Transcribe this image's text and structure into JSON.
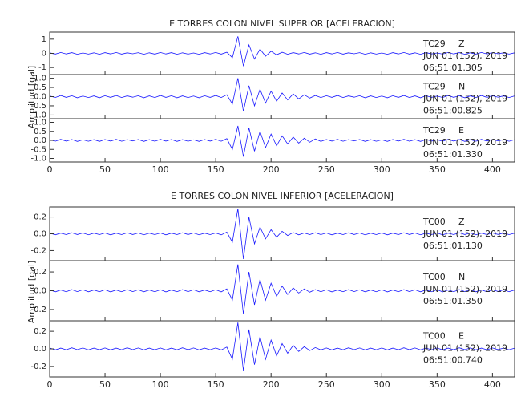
{
  "chart_data": [
    {
      "type": "line",
      "title": "E TORRES COLON NIVEL SUPERIOR [ACELERACION]",
      "ylabel": "Amplitud [gal]",
      "color": "#1a1aff",
      "xlim": [
        0,
        420
      ],
      "xticks": [
        0,
        50,
        100,
        150,
        200,
        250,
        300,
        350,
        400
      ],
      "x": [
        0,
        5,
        10,
        15,
        20,
        25,
        30,
        35,
        40,
        45,
        50,
        55,
        60,
        65,
        70,
        75,
        80,
        85,
        90,
        95,
        100,
        105,
        110,
        115,
        120,
        125,
        130,
        135,
        140,
        145,
        150,
        155,
        160,
        165,
        170,
        175,
        180,
        185,
        190,
        195,
        200,
        205,
        210,
        215,
        220,
        225,
        230,
        235,
        240,
        245,
        250,
        255,
        260,
        265,
        270,
        275,
        280,
        285,
        290,
        295,
        300,
        305,
        310,
        315,
        320,
        325,
        330,
        335,
        340,
        345,
        350,
        355,
        360,
        365,
        370,
        375,
        380,
        385,
        390,
        395,
        400,
        405,
        410,
        415,
        420
      ],
      "panels": [
        {
          "station": "TC29",
          "component": "Z",
          "date": "JUN 01 (152), 2019",
          "time": "06:51:01.305",
          "ylim": [
            -1.5,
            1.5
          ],
          "yticks": [
            -1,
            0,
            1
          ],
          "values": [
            0.04,
            -0.05,
            0.06,
            -0.04,
            0.05,
            -0.06,
            0.03,
            -0.05,
            0.04,
            -0.06,
            0.05,
            -0.04,
            0.06,
            -0.05,
            0.04,
            -0.03,
            0.05,
            -0.06,
            0.04,
            -0.05,
            0.06,
            -0.04,
            0.05,
            -0.06,
            0.04,
            -0.05,
            0.03,
            -0.06,
            0.05,
            -0.04,
            0.06,
            -0.05,
            0.08,
            -0.3,
            1.2,
            -0.9,
            0.6,
            -0.4,
            0.3,
            -0.2,
            0.15,
            -0.1,
            0.08,
            -0.06,
            0.05,
            -0.04,
            0.06,
            -0.05,
            0.04,
            -0.06,
            0.05,
            -0.04,
            0.06,
            -0.05,
            0.04,
            -0.03,
            0.05,
            -0.06,
            0.04,
            -0.05,
            0.03,
            -0.06,
            0.05,
            -0.04,
            0.06,
            -0.05,
            0.04,
            -0.06,
            0.05,
            -0.04,
            0.03,
            -0.05,
            0.06,
            -0.04,
            0.05,
            -0.06,
            0.04,
            -0.05,
            0.06,
            -0.04,
            0.05,
            -0.03,
            0.04,
            -0.05,
            0.04
          ]
        },
        {
          "station": "TC29",
          "component": "N",
          "date": "JUN 01 (152), 2019",
          "time": "06:51:00.825",
          "ylim": [
            -1.2,
            1.2
          ],
          "yticks": [
            {
              "value": -1,
              "label": "-1.0"
            },
            -0.5,
            {
              "value": 0,
              "label": "0.0"
            },
            0.5,
            {
              "value": 1,
              "label": "1.0"
            }
          ],
          "values": [
            0.04,
            -0.05,
            0.06,
            -0.04,
            0.05,
            -0.06,
            0.03,
            -0.05,
            0.04,
            -0.06,
            0.05,
            -0.04,
            0.06,
            -0.05,
            0.04,
            -0.03,
            0.05,
            -0.06,
            0.04,
            -0.05,
            0.06,
            -0.04,
            0.05,
            -0.06,
            0.04,
            -0.05,
            0.03,
            -0.06,
            0.05,
            -0.04,
            0.06,
            -0.05,
            0.1,
            -0.4,
            1.0,
            -0.8,
            0.6,
            -0.5,
            0.4,
            -0.35,
            0.3,
            -0.25,
            0.2,
            -0.18,
            0.15,
            -0.12,
            0.1,
            -0.08,
            0.06,
            -0.05,
            0.05,
            -0.04,
            0.06,
            -0.05,
            0.04,
            -0.03,
            0.05,
            -0.06,
            0.04,
            -0.05,
            0.03,
            -0.06,
            0.05,
            -0.04,
            0.06,
            -0.05,
            0.04,
            -0.06,
            0.05,
            -0.04,
            0.03,
            -0.05,
            0.06,
            -0.04,
            0.05,
            -0.06,
            0.04,
            -0.05,
            0.06,
            -0.04,
            0.05,
            -0.03,
            0.04,
            -0.05,
            0.04
          ]
        },
        {
          "station": "TC29",
          "component": "E",
          "date": "JUN 01 (152), 2019",
          "time": "06:51:01.330",
          "ylim": [
            -1.2,
            1.2
          ],
          "yticks": [
            {
              "value": -1,
              "label": "-1.0"
            },
            -0.5,
            {
              "value": 0,
              "label": "0.0"
            },
            0.5,
            {
              "value": 1,
              "label": "1.0"
            }
          ],
          "values": [
            0.04,
            -0.05,
            0.06,
            -0.04,
            0.05,
            -0.06,
            0.03,
            -0.05,
            0.04,
            -0.06,
            0.05,
            -0.04,
            0.06,
            -0.05,
            0.04,
            -0.03,
            0.05,
            -0.06,
            0.04,
            -0.05,
            0.06,
            -0.04,
            0.05,
            -0.06,
            0.04,
            -0.05,
            0.03,
            -0.06,
            0.05,
            -0.04,
            0.06,
            -0.05,
            0.1,
            -0.5,
            0.8,
            -0.9,
            0.7,
            -0.6,
            0.5,
            -0.4,
            0.35,
            -0.3,
            0.25,
            -0.2,
            0.18,
            -0.15,
            0.12,
            -0.1,
            0.08,
            -0.06,
            0.05,
            -0.04,
            0.06,
            -0.05,
            0.04,
            -0.03,
            0.05,
            -0.06,
            0.04,
            -0.05,
            0.03,
            -0.06,
            0.05,
            -0.04,
            0.06,
            -0.05,
            0.04,
            -0.06,
            0.05,
            -0.04,
            0.03,
            -0.05,
            0.06,
            -0.04,
            0.05,
            -0.06,
            0.04,
            -0.05,
            0.06,
            -0.04,
            0.05,
            -0.03,
            0.04,
            -0.05,
            0.04
          ]
        }
      ]
    },
    {
      "type": "line",
      "title": "E TORRES COLON NIVEL INFERIOR [ACELERACION]",
      "ylabel": "Amplitud [gal]",
      "color": "#1a1aff",
      "xlim": [
        0,
        420
      ],
      "xticks": [
        0,
        50,
        100,
        150,
        200,
        250,
        300,
        350,
        400
      ],
      "x": [
        0,
        5,
        10,
        15,
        20,
        25,
        30,
        35,
        40,
        45,
        50,
        55,
        60,
        65,
        70,
        75,
        80,
        85,
        90,
        95,
        100,
        105,
        110,
        115,
        120,
        125,
        130,
        135,
        140,
        145,
        150,
        155,
        160,
        165,
        170,
        175,
        180,
        185,
        190,
        195,
        200,
        205,
        210,
        215,
        220,
        225,
        230,
        235,
        240,
        245,
        250,
        255,
        260,
        265,
        270,
        275,
        280,
        285,
        290,
        295,
        300,
        305,
        310,
        315,
        320,
        325,
        330,
        335,
        340,
        345,
        350,
        355,
        360,
        365,
        370,
        375,
        380,
        385,
        390,
        395,
        400,
        405,
        410,
        415,
        420
      ],
      "panels": [
        {
          "station": "TC00",
          "component": "Z",
          "date": "JUN 01 (152), 2019",
          "time": "06:51:01.130",
          "ylim": [
            -0.32,
            0.32
          ],
          "yticks": [
            -0.2,
            {
              "value": 0,
              "label": "0.0"
            },
            0.2
          ],
          "values": [
            0.01,
            -0.012,
            0.008,
            -0.01,
            0.012,
            -0.009,
            0.01,
            -0.011,
            0.008,
            -0.01,
            0.01,
            -0.012,
            0.008,
            -0.01,
            0.012,
            -0.009,
            0.01,
            -0.011,
            0.008,
            -0.01,
            0.01,
            -0.012,
            0.008,
            -0.01,
            0.012,
            -0.009,
            0.01,
            -0.011,
            0.008,
            -0.01,
            0.01,
            -0.012,
            0.02,
            -0.1,
            0.3,
            -0.3,
            0.2,
            -0.12,
            0.08,
            -0.06,
            0.05,
            -0.04,
            0.03,
            -0.02,
            0.015,
            -0.012,
            0.01,
            -0.01,
            0.012,
            -0.01,
            0.01,
            -0.012,
            0.008,
            -0.01,
            0.012,
            -0.009,
            0.01,
            -0.011,
            0.008,
            -0.01,
            0.01,
            -0.012,
            0.008,
            -0.01,
            0.012,
            -0.009,
            0.01,
            -0.011,
            0.008,
            -0.01,
            0.01,
            -0.012,
            0.008,
            -0.01,
            0.012,
            -0.009,
            0.01,
            -0.011,
            0.008,
            -0.01,
            0.01,
            -0.008,
            0.009,
            -0.01,
            0.008
          ]
        },
        {
          "station": "TC00",
          "component": "N",
          "date": "JUN 01 (152), 2019",
          "time": "06:51:01.350",
          "ylim": [
            -0.32,
            0.32
          ],
          "yticks": [
            -0.2,
            {
              "value": 0,
              "label": "0.0"
            },
            0.2
          ],
          "values": [
            0.01,
            -0.012,
            0.008,
            -0.01,
            0.012,
            -0.009,
            0.01,
            -0.011,
            0.008,
            -0.01,
            0.01,
            -0.012,
            0.008,
            -0.01,
            0.012,
            -0.009,
            0.01,
            -0.011,
            0.008,
            -0.01,
            0.01,
            -0.012,
            0.008,
            -0.01,
            0.012,
            -0.009,
            0.01,
            -0.011,
            0.008,
            -0.01,
            0.01,
            -0.012,
            0.02,
            -0.1,
            0.28,
            -0.25,
            0.2,
            -0.15,
            0.12,
            -0.1,
            0.08,
            -0.06,
            0.05,
            -0.04,
            0.03,
            -0.025,
            0.02,
            -0.015,
            0.012,
            -0.01,
            0.01,
            -0.012,
            0.008,
            -0.01,
            0.012,
            -0.009,
            0.01,
            -0.011,
            0.008,
            -0.01,
            0.01,
            -0.012,
            0.008,
            -0.01,
            0.012,
            -0.009,
            0.01,
            -0.011,
            0.008,
            -0.01,
            0.01,
            -0.012,
            0.008,
            -0.01,
            0.012,
            -0.009,
            0.01,
            -0.011,
            0.008,
            -0.01,
            0.01,
            -0.008,
            0.009,
            -0.01,
            0.008
          ]
        },
        {
          "station": "TC00",
          "component": "E",
          "date": "JUN 01 (152), 2019",
          "time": "06:51:00.740",
          "ylim": [
            -0.32,
            0.32
          ],
          "yticks": [
            -0.2,
            {
              "value": 0,
              "label": "0.0"
            },
            0.2
          ],
          "values": [
            0.01,
            -0.012,
            0.008,
            -0.01,
            0.012,
            -0.009,
            0.01,
            -0.011,
            0.008,
            -0.01,
            0.01,
            -0.012,
            0.008,
            -0.01,
            0.012,
            -0.009,
            0.01,
            -0.011,
            0.008,
            -0.01,
            0.01,
            -0.012,
            0.008,
            -0.01,
            0.012,
            -0.009,
            0.01,
            -0.011,
            0.008,
            -0.01,
            0.01,
            -0.012,
            0.02,
            -0.12,
            0.3,
            -0.25,
            0.22,
            -0.18,
            0.14,
            -0.12,
            0.1,
            -0.08,
            0.06,
            -0.05,
            0.04,
            -0.03,
            0.025,
            -0.02,
            0.015,
            -0.012,
            0.01,
            -0.012,
            0.008,
            -0.01,
            0.012,
            -0.009,
            0.01,
            -0.011,
            0.008,
            -0.01,
            0.01,
            -0.012,
            0.008,
            -0.01,
            0.012,
            -0.009,
            0.01,
            -0.011,
            0.008,
            -0.01,
            0.01,
            -0.012,
            0.008,
            -0.01,
            0.012,
            -0.009,
            0.01,
            -0.011,
            0.008,
            -0.01,
            0.01,
            -0.008,
            0.009,
            -0.01,
            0.008
          ]
        }
      ]
    }
  ]
}
